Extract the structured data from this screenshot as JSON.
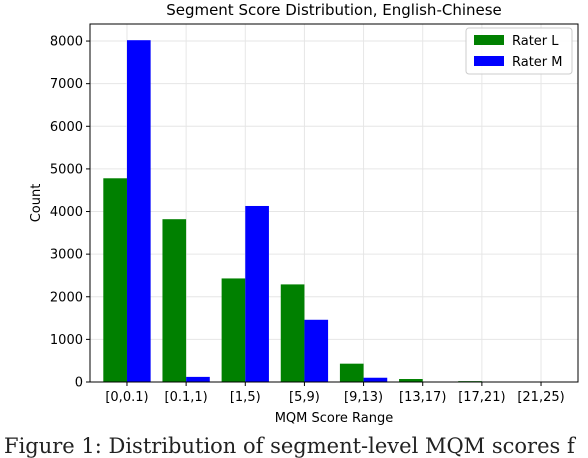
{
  "chart_data": {
    "type": "bar",
    "title": "Segment Score Distribution, English-Chinese",
    "xlabel": "MQM Score Range",
    "ylabel": "Count",
    "categories": [
      "[0,0.1)",
      "[0.1,1)",
      "[1,5)",
      "[5,9)",
      "[9,13)",
      "[13,17)",
      "[17,21)",
      "[21,25)"
    ],
    "series": [
      {
        "name": "Rater L",
        "color": "#008000",
        "values": [
          4780,
          3820,
          2430,
          2290,
          430,
          70,
          20,
          5
        ]
      },
      {
        "name": "Rater M",
        "color": "#0000ff",
        "values": [
          8020,
          120,
          4130,
          1460,
          100,
          10,
          5,
          2
        ]
      }
    ],
    "yticks": [
      0,
      1000,
      2000,
      3000,
      4000,
      5000,
      6000,
      7000,
      8000
    ],
    "ylim": [
      0,
      8400
    ],
    "grid": true,
    "legend_position": "top-right"
  },
  "caption": "Figure 1: Distribution of segment-level MQM scores f"
}
